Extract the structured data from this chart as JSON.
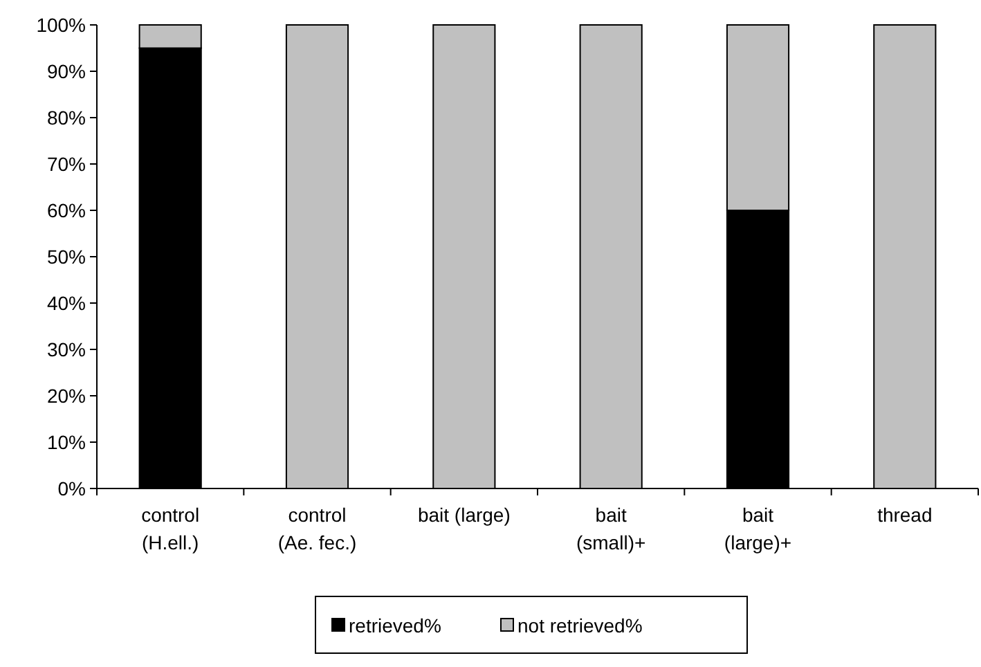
{
  "chart_data": {
    "type": "bar",
    "stacked": true,
    "categories": [
      "control\n(H.ell.)",
      "control\n(Ae. fec.)",
      "bait (large)",
      "bait\n(small)+",
      "bait\n(large)+",
      "thread"
    ],
    "series": [
      {
        "name": "retrieved%",
        "color": "#000000",
        "values": [
          95,
          0,
          0,
          0,
          60,
          0
        ]
      },
      {
        "name": "not retrieved%",
        "color": "#c0c0c0",
        "values": [
          5,
          100,
          100,
          100,
          40,
          100
        ]
      }
    ],
    "ylim": [
      0,
      100
    ],
    "yticks": [
      {
        "value": 0,
        "label": "0%"
      },
      {
        "value": 10,
        "label": "10%"
      },
      {
        "value": 20,
        "label": "20%"
      },
      {
        "value": 30,
        "label": "30%"
      },
      {
        "value": 40,
        "label": "40%"
      },
      {
        "value": 50,
        "label": "50%"
      },
      {
        "value": 60,
        "label": "60%"
      },
      {
        "value": 70,
        "label": "70%"
      },
      {
        "value": 80,
        "label": "80%"
      },
      {
        "value": 90,
        "label": "90%"
      },
      {
        "value": 100,
        "label": "100%"
      }
    ],
    "grid": false,
    "legend": "bottom"
  }
}
